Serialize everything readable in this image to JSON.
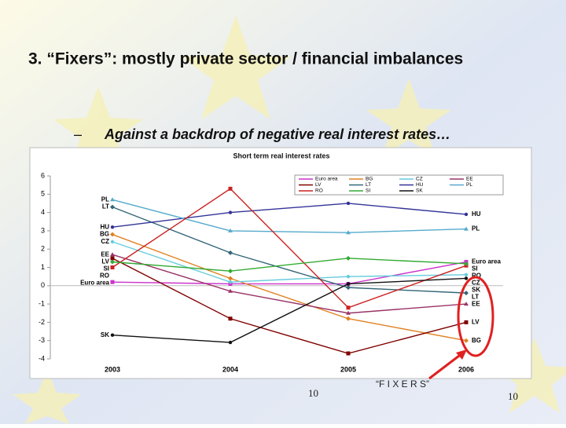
{
  "slide": {
    "title": "3. “Fixers”: mostly private sector / financial imbalances",
    "bullet": "–",
    "subtitle": "Against a backdrop of negative real interest rates…",
    "page_number_left": "10",
    "fixers_label": "“F I X E R S”",
    "page_number_right": "10"
  },
  "chart_data": {
    "type": "line",
    "title": "Short term real interest rates",
    "categories": [
      "2003",
      "2004",
      "2005",
      "2006"
    ],
    "ylim": [
      -4,
      6
    ],
    "yticks": [
      -4,
      -3,
      -2,
      -1,
      0,
      1,
      2,
      3,
      4,
      5,
      6
    ],
    "series": [
      {
        "name": "Euro area",
        "color": "#cc33cc",
        "values": [
          0.2,
          0.1,
          0.1,
          1.3
        ]
      },
      {
        "name": "BG",
        "color": "#e08020",
        "values": [
          2.8,
          0.4,
          -1.8,
          -3.0
        ]
      },
      {
        "name": "CZ",
        "color": "#66ccdd",
        "values": [
          2.4,
          0.2,
          0.5,
          0.6
        ]
      },
      {
        "name": "EE",
        "color": "#993366",
        "values": [
          1.7,
          -0.3,
          -1.5,
          -1.0
        ]
      },
      {
        "name": "LV",
        "color": "#800000",
        "values": [
          1.5,
          -1.8,
          -3.7,
          -2.0
        ]
      },
      {
        "name": "LT",
        "color": "#336677",
        "values": [
          4.3,
          1.8,
          -0.1,
          -0.4
        ]
      },
      {
        "name": "HU",
        "color": "#333399",
        "values": [
          3.2,
          4.0,
          4.5,
          3.9
        ]
      },
      {
        "name": "PL",
        "color": "#55aacc",
        "values": [
          4.7,
          3.0,
          2.9,
          3.1
        ]
      },
      {
        "name": "RO",
        "color": "#cc2222",
        "values": [
          1.0,
          5.3,
          -1.2,
          1.1
        ]
      },
      {
        "name": "SI",
        "color": "#33aa33",
        "values": [
          1.3,
          0.8,
          1.5,
          1.2
        ]
      },
      {
        "name": "SK",
        "color": "#111111",
        "values": [
          -2.7,
          -3.1,
          0.1,
          0.4
        ]
      }
    ]
  }
}
